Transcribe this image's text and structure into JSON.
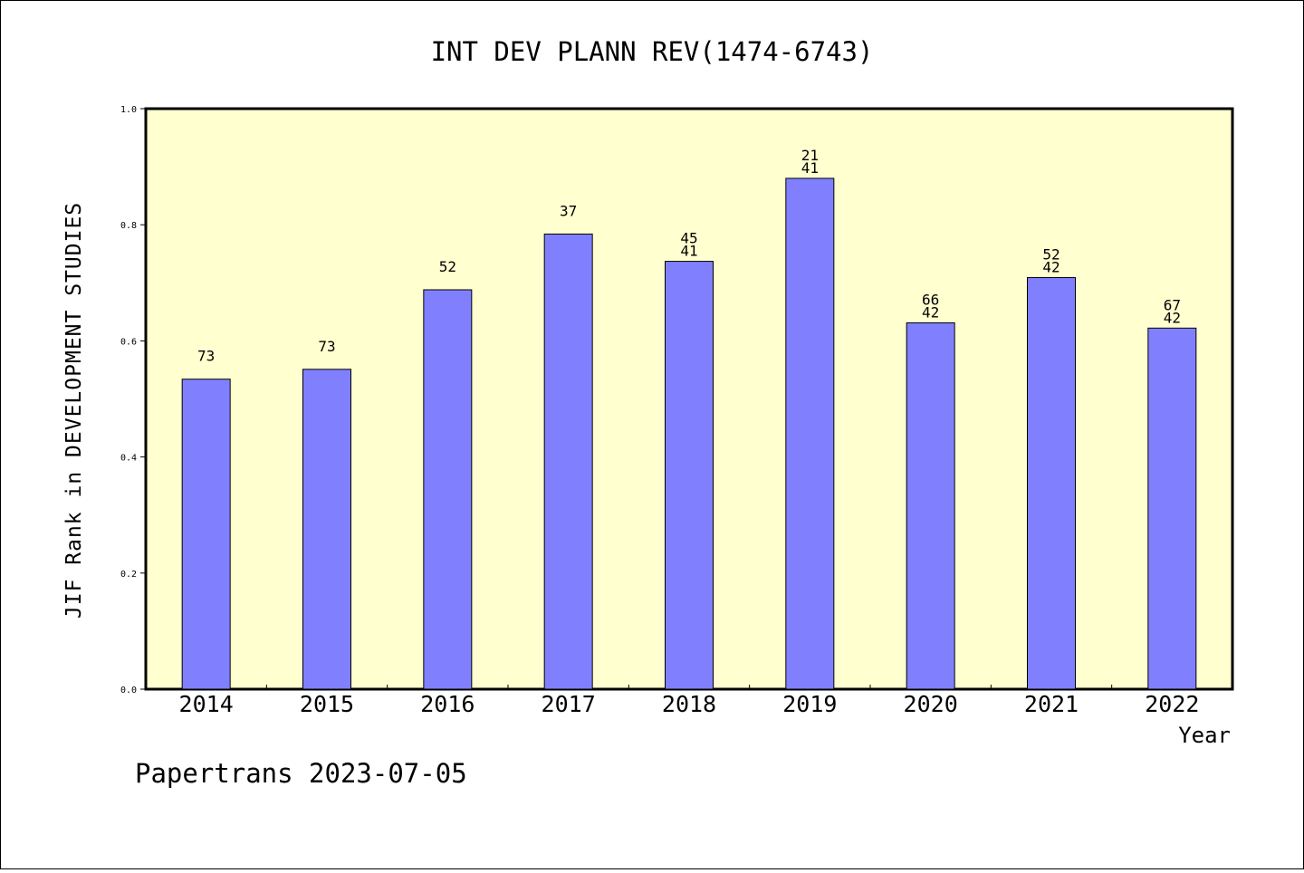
{
  "chart_data": {
    "type": "bar",
    "title": "INT DEV PLANN REV(1474-6743)",
    "xlabel": "Year",
    "ylabel": "JIF Rank in DEVELOPMENT STUDIES",
    "ylim": [
      0.0,
      1.0
    ],
    "yticks": [
      "0.0",
      "0.2",
      "0.4",
      "0.6",
      "0.8",
      "1.0"
    ],
    "categories": [
      "2014",
      "2015",
      "2016",
      "2017",
      "2018",
      "2019",
      "2020",
      "2021",
      "2022"
    ],
    "values": [
      0.534,
      0.551,
      0.688,
      0.784,
      0.737,
      0.88,
      0.631,
      0.709,
      0.622
    ],
    "bar_labels": [
      [
        "73"
      ],
      [
        "73"
      ],
      [
        "52"
      ],
      [
        "37"
      ],
      [
        "45",
        "41"
      ],
      [
        "21",
        "41"
      ],
      [
        "66",
        "42"
      ],
      [
        "52",
        "42"
      ],
      [
        "67",
        "42"
      ]
    ],
    "grid": false,
    "legend": "none",
    "colors": {
      "plot_background": "#ffffd0",
      "bar_fill": "#8080ff",
      "bar_stroke": "#000000"
    }
  },
  "footer": "Papertrans 2023-07-05"
}
